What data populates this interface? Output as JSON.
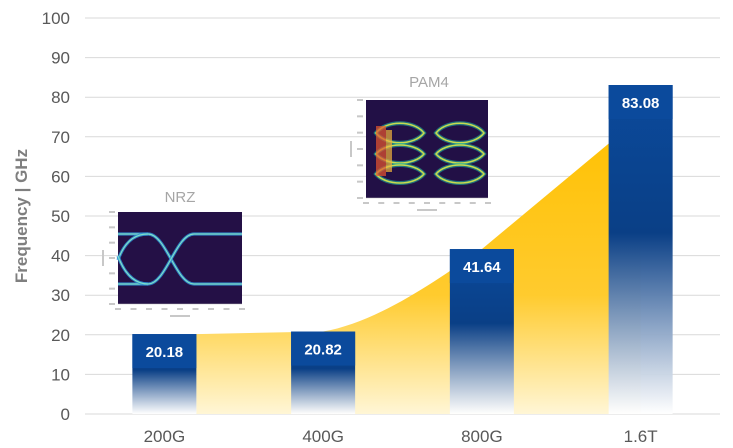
{
  "chart_data": {
    "type": "bar",
    "ylabel": "Frequency | GHz",
    "ylim": [
      0,
      100
    ],
    "yticks": [
      0,
      10,
      20,
      30,
      40,
      50,
      60,
      70,
      80,
      90,
      100
    ],
    "categories": [
      "200G",
      "400G",
      "800G",
      "1.6T"
    ],
    "values": [
      20.18,
      20.82,
      41.64,
      83.08
    ],
    "value_labels": [
      "20.18",
      "20.82",
      "41.64",
      "83.08"
    ],
    "grid": true,
    "legend": "none",
    "colors": {
      "bar_top": "#0b4a9c",
      "bar_fade": "#ffffff",
      "area": "#ffc000",
      "grid": "#d9d9d9",
      "label_bg": "#0b4a9c"
    },
    "insets": [
      {
        "label": "NRZ",
        "category": "200G"
      },
      {
        "label": "PAM4",
        "category": "400G"
      }
    ]
  }
}
